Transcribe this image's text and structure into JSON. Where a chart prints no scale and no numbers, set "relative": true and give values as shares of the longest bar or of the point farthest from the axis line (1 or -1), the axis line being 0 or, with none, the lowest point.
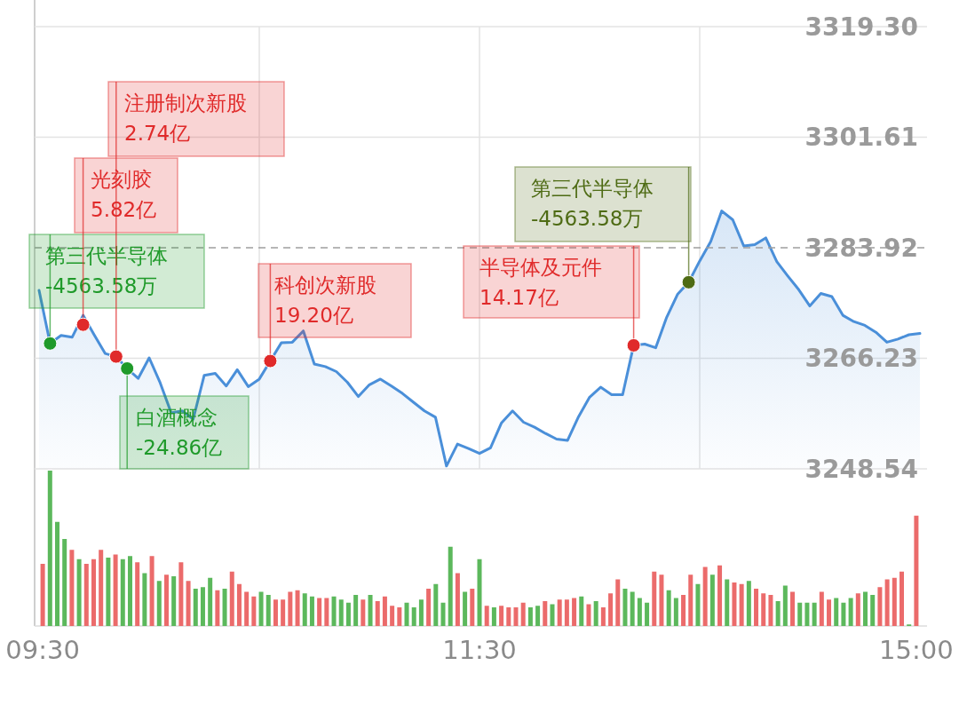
{
  "chart_data": [
    {
      "type": "area",
      "categories": [
        null,
        null,
        null,
        null,
        null,
        null,
        null,
        null,
        null,
        null,
        null,
        null,
        null,
        null,
        null,
        null,
        null,
        null,
        null,
        null,
        null,
        null,
        null,
        null,
        null,
        null,
        null,
        null,
        null,
        null,
        null,
        null,
        null,
        null,
        null,
        null,
        null,
        null,
        null,
        null,
        null,
        null,
        null,
        null,
        null,
        null,
        null,
        null,
        null,
        null,
        null,
        null,
        null,
        null,
        null,
        null,
        null,
        null,
        null,
        null,
        null,
        null,
        null,
        null,
        null,
        null,
        null,
        null,
        null,
        null,
        null,
        null,
        null,
        null,
        null,
        null,
        null,
        null,
        null,
        null,
        null
      ],
      "ylim": [
        3248.54,
        3319.3
      ],
      "yticks": [
        {
          "value": 3248.54,
          "label": "3248.54"
        },
        {
          "value": 3266.23,
          "label": "3266.23"
        },
        {
          "value": 3283.92,
          "label": "3283.92"
        },
        {
          "value": 3301.61,
          "label": "3301.61"
        },
        {
          "value": 3319.3,
          "label": "3319.30"
        }
      ],
      "grid": true,
      "tick_labels": "y",
      "ref_lines": [
        {
          "axis": "y",
          "value": 3283.92,
          "color": "#9e9e9e",
          "line_style": "dashed"
        }
      ],
      "series": [
        {
          "color": "#4a8fd9",
          "values": [
            3277.1,
            3268.6,
            3269.9,
            3269.6,
            3273.1,
            3270.0,
            3267.0,
            3266.5,
            3264.6,
            3263.0,
            3266.3,
            3262.3,
            3257.5,
            3257.8,
            3256.5,
            3263.5,
            3263.8,
            3261.8,
            3264.4,
            3261.7,
            3262.9,
            3265.8,
            3268.7,
            3268.8,
            3270.6,
            3265.3,
            3264.9,
            3264.1,
            3262.4,
            3260.1,
            3262.0,
            3262.9,
            3261.8,
            3260.6,
            3259.2,
            3257.8,
            3256.8,
            3249.0,
            3252.5,
            3251.8,
            3251.0,
            3251.9,
            3255.9,
            3257.8,
            3256.0,
            3255.2,
            3254.2,
            3253.3,
            3253.1,
            3256.9,
            3260.0,
            3261.6,
            3260.4,
            3260.4,
            3268.3,
            3268.5,
            3267.9,
            3272.8,
            3276.5,
            3278.4,
            3281.8,
            3284.9,
            3289.8,
            3288.4,
            3284.2,
            3284.4,
            3285.5,
            3281.7,
            3279.4,
            3277.2,
            3274.6,
            3276.6,
            3276.1,
            3273.1,
            3272.1,
            3271.5,
            3270.4,
            3268.8,
            3269.3,
            3270.0,
            3270.2
          ]
        },
        {
          "type": "scatter",
          "color": "#e02a2a",
          "values": [
            null,
            null,
            null,
            null,
            3271.6,
            null,
            null,
            3266.5,
            null,
            null,
            null,
            null,
            null,
            null,
            null,
            null,
            null,
            null,
            null,
            null,
            null,
            3265.8,
            null,
            null,
            null,
            null,
            null,
            null,
            null,
            null,
            null,
            null,
            null,
            null,
            null,
            null,
            null,
            null,
            null,
            null,
            null,
            null,
            null,
            null,
            null,
            null,
            null,
            null,
            null,
            null,
            null,
            null,
            null,
            null,
            3268.3,
            null,
            null,
            null,
            null,
            null,
            null,
            null,
            null,
            null,
            null,
            null,
            null,
            null,
            null,
            null,
            null,
            null,
            null,
            null,
            null,
            null,
            null,
            null,
            null,
            null,
            null
          ]
        },
        {
          "type": "scatter",
          "color": "#1f9a2a",
          "values": [
            null,
            3268.6,
            null,
            null,
            null,
            null,
            null,
            null,
            3264.6,
            null,
            null,
            null,
            null,
            null,
            null,
            null,
            null,
            null,
            null,
            null,
            null,
            null,
            null,
            null,
            null,
            null,
            null,
            null,
            null,
            null,
            null,
            null,
            null,
            null,
            null,
            null,
            null,
            null,
            null,
            null,
            null,
            null,
            null,
            null,
            null,
            null,
            null,
            null,
            null,
            null,
            null,
            null,
            null,
            null,
            null,
            null,
            null,
            null,
            null,
            null,
            null,
            null,
            null,
            null,
            null,
            null,
            null,
            null,
            null,
            null,
            null,
            null,
            null,
            null,
            null,
            null,
            null,
            null,
            null,
            null,
            null
          ]
        },
        {
          "type": "scatter",
          "color": "#4e6b14",
          "values": [
            null,
            null,
            null,
            null,
            null,
            null,
            null,
            null,
            null,
            null,
            null,
            null,
            null,
            null,
            null,
            null,
            null,
            null,
            null,
            null,
            null,
            null,
            null,
            null,
            null,
            null,
            null,
            null,
            null,
            null,
            null,
            null,
            null,
            null,
            null,
            null,
            null,
            null,
            null,
            null,
            null,
            null,
            null,
            null,
            null,
            null,
            null,
            null,
            null,
            null,
            null,
            null,
            null,
            null,
            null,
            null,
            null,
            null,
            null,
            3278.4,
            null,
            null,
            null,
            null,
            null,
            null,
            null,
            null,
            null,
            null,
            null,
            null,
            null,
            null,
            null,
            null,
            null,
            null,
            null,
            null,
            null
          ]
        }
      ],
      "annotations": [
        "第三代半导体\n-4563.58万",
        "光刻胶\n5.82亿",
        "注册制次新股\n2.74亿",
        "白酒概念\n-24.86亿",
        "科创次新股\n19.20亿",
        "半导体及元件\n14.17亿",
        "第三代半导体\n-4563.58万"
      ]
    },
    {
      "type": "bar",
      "relative": true,
      "tick_labels": "x",
      "categories": [
        "09:30",
        null,
        null,
        null,
        null,
        null,
        null,
        null,
        null,
        null,
        null,
        null,
        null,
        null,
        null,
        null,
        null,
        null,
        null,
        null,
        null,
        null,
        null,
        null,
        null,
        null,
        null,
        null,
        null,
        null,
        null,
        null,
        null,
        null,
        null,
        null,
        null,
        null,
        null,
        null,
        null,
        null,
        null,
        null,
        null,
        null,
        null,
        null,
        null,
        null,
        null,
        null,
        null,
        null,
        null,
        null,
        null,
        null,
        null,
        null,
        "11:30",
        null,
        null,
        null,
        null,
        null,
        null,
        null,
        null,
        null,
        null,
        null,
        null,
        null,
        null,
        null,
        null,
        null,
        null,
        null,
        null,
        null,
        null,
        null,
        null,
        null,
        null,
        null,
        null,
        null,
        null,
        null,
        null,
        null,
        null,
        null,
        null,
        null,
        null,
        null,
        null,
        null,
        null,
        null,
        null,
        null,
        null,
        null,
        null,
        null,
        null,
        null,
        null,
        null,
        null,
        null,
        null,
        null,
        null,
        null,
        "15:00"
      ],
      "values": [
        0.4,
        1.0,
        0.67,
        0.56,
        0.49,
        0.43,
        0.4,
        0.43,
        0.49,
        0.44,
        0.46,
        0.43,
        0.45,
        0.41,
        0.34,
        0.45,
        0.29,
        0.33,
        0.32,
        0.41,
        0.29,
        0.24,
        0.25,
        0.31,
        0.23,
        0.24,
        0.35,
        0.27,
        0.22,
        0.19,
        0.22,
        0.2,
        0.17,
        0.17,
        0.22,
        0.23,
        0.21,
        0.19,
        0.18,
        0.18,
        0.19,
        0.17,
        0.15,
        0.2,
        0.17,
        0.2,
        0.16,
        0.19,
        0.13,
        0.12,
        0.15,
        0.12,
        0.17,
        0.24,
        0.27,
        0.15,
        0.51,
        0.34,
        0.22,
        0.24,
        0.43,
        0.13,
        0.12,
        0.13,
        0.12,
        0.12,
        0.15,
        0.12,
        0.13,
        0.16,
        0.14,
        0.17,
        0.17,
        0.18,
        0.19,
        0.14,
        0.16,
        0.12,
        0.21,
        0.3,
        0.24,
        0.22,
        0.18,
        0.15,
        0.35,
        0.33,
        0.23,
        0.18,
        0.2,
        0.33,
        0.27,
        0.38,
        0.33,
        0.39,
        0.3,
        0.28,
        0.27,
        0.29,
        0.24,
        0.21,
        0.2,
        0.16,
        0.26,
        0.22,
        0.15,
        0.15,
        0.15,
        0.22,
        0.17,
        0.18,
        0.15,
        0.18,
        0.21,
        0.22,
        0.2,
        0.25,
        0.3,
        0.31,
        0.35,
        0.01,
        0.71
      ],
      "colors": [
        "#eb6b6b",
        "#5cb85c",
        "#5cb85c",
        "#5cb85c",
        "#eb6b6b",
        "#5cb85c",
        "#eb6b6b",
        "#eb6b6b",
        "#eb6b6b",
        "#5cb85c",
        "#eb6b6b",
        "#5cb85c",
        "#5cb85c",
        "#eb6b6b",
        "#5cb85c",
        "#eb6b6b",
        "#5cb85c",
        "#eb6b6b",
        "#5cb85c",
        "#eb6b6b",
        "#eb6b6b",
        "#5cb85c",
        "#5cb85c",
        "#5cb85c",
        "#eb6b6b",
        "#5cb85c",
        "#eb6b6b",
        "#eb6b6b",
        "#eb6b6b",
        "#eb6b6b",
        "#5cb85c",
        "#5cb85c",
        "#eb6b6b",
        "#eb6b6b",
        "#eb6b6b",
        "#eb6b6b",
        "#5cb85c",
        "#5cb85c",
        "#eb6b6b",
        "#eb6b6b",
        "#5cb85c",
        "#5cb85c",
        "#5cb85c",
        "#5cb85c",
        "#eb6b6b",
        "#5cb85c",
        "#eb6b6b",
        "#eb6b6b",
        "#eb6b6b",
        "#eb6b6b",
        "#5cb85c",
        "#5cb85c",
        "#5cb85c",
        "#eb6b6b",
        "#5cb85c",
        "#5cb85c",
        "#5cb85c",
        "#eb6b6b",
        "#5cb85c",
        "#eb6b6b",
        "#5cb85c",
        "#eb6b6b",
        "#5cb85c",
        "#eb6b6b",
        "#eb6b6b",
        "#eb6b6b",
        "#eb6b6b",
        "#5cb85c",
        "#5cb85c",
        "#eb6b6b",
        "#5cb85c",
        "#eb6b6b",
        "#eb6b6b",
        "#eb6b6b",
        "#5cb85c",
        "#eb6b6b",
        "#5cb85c",
        "#eb6b6b",
        "#eb6b6b",
        "#eb6b6b",
        "#5cb85c",
        "#5cb85c",
        "#5cb85c",
        "#5cb85c",
        "#eb6b6b",
        "#eb6b6b",
        "#5cb85c",
        "#5cb85c",
        "#eb6b6b",
        "#eb6b6b",
        "#5cb85c",
        "#eb6b6b",
        "#5cb85c",
        "#eb6b6b",
        "#5cb85c",
        "#eb6b6b",
        "#eb6b6b",
        "#5cb85c",
        "#eb6b6b",
        "#eb6b6b",
        "#eb6b6b",
        "#5cb85c",
        "#5cb85c",
        "#eb6b6b",
        "#5cb85c",
        "#5cb85c",
        "#5cb85c",
        "#eb6b6b",
        "#eb6b6b",
        "#5cb85c",
        "#5cb85c",
        "#5cb85c",
        "#eb6b6b",
        "#5cb85c",
        "#5cb85c",
        "#eb6b6b",
        "#eb6b6b",
        "#eb6b6b",
        "#eb6b6b",
        "#5cb85c",
        "#eb6b6b"
      ]
    }
  ]
}
